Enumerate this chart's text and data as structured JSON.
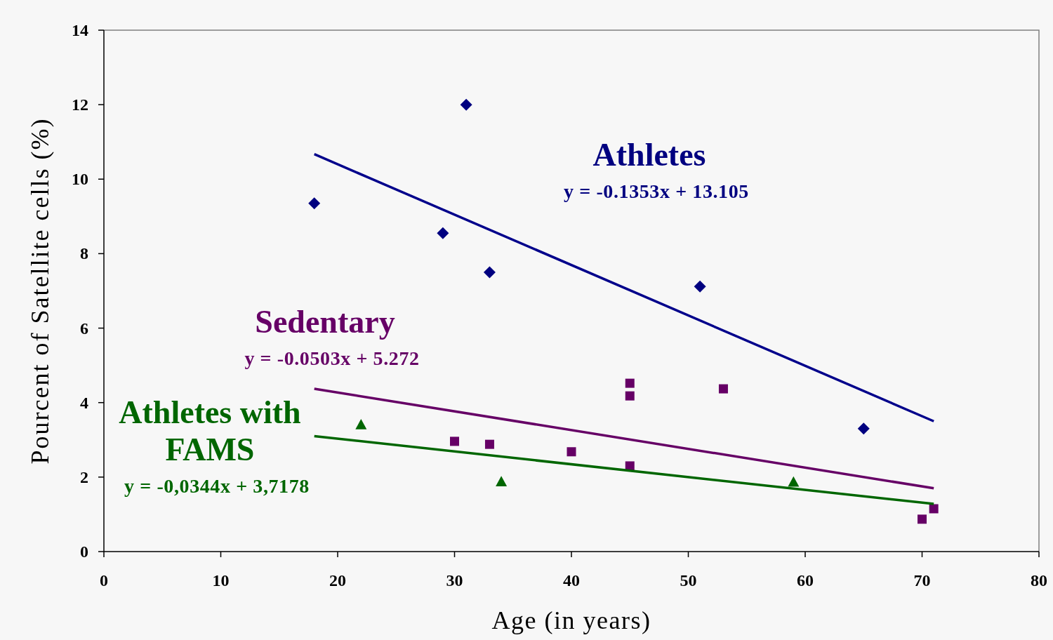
{
  "chart_data": {
    "type": "scatter",
    "xlabel": "Age (in years)",
    "ylabel": "Pourcent of Satellite cells (%)",
    "xlim": [
      0,
      80
    ],
    "xticks": [
      0,
      10,
      20,
      30,
      40,
      50,
      60,
      70,
      80
    ],
    "ylim": [
      0,
      14
    ],
    "yticks": [
      0,
      2,
      4,
      6,
      8,
      10,
      12,
      14
    ],
    "series": [
      {
        "name": "Athletes",
        "color": "#000080",
        "marker": "diamond",
        "x": [
          18,
          29,
          31,
          33,
          51,
          65
        ],
        "values": [
          9.35,
          8.55,
          12.0,
          7.5,
          7.12,
          3.3
        ]
      },
      {
        "name": "Sedentary",
        "color": "#660066",
        "marker": "square",
        "x": [
          30,
          33,
          40,
          45,
          45,
          45,
          53,
          70,
          71
        ],
        "values": [
          2.96,
          2.88,
          2.68,
          4.52,
          4.18,
          2.3,
          4.37,
          0.87,
          1.15
        ]
      },
      {
        "name": "Athletes with FAMS",
        "color": "#006600",
        "marker": "triangle",
        "x": [
          22,
          34,
          59
        ],
        "values": [
          3.41,
          1.88,
          1.87
        ]
      },
      {
        "type": "line",
        "color": "#00008b",
        "marker": "none",
        "x": [
          18,
          71
        ],
        "values": [
          10.67,
          3.5
        ]
      },
      {
        "type": "line",
        "color": "#660066",
        "marker": "none",
        "x": [
          18,
          71
        ],
        "values": [
          4.37,
          1.7
        ]
      },
      {
        "type": "line",
        "color": "#006600",
        "marker": "none",
        "x": [
          18,
          71
        ],
        "values": [
          3.1,
          1.28
        ]
      }
    ],
    "annotations": [
      "y = -0.1353x + 13.105",
      "y = -0.0503x + 5.272",
      "y = -0,0344x + 3,7178"
    ]
  }
}
